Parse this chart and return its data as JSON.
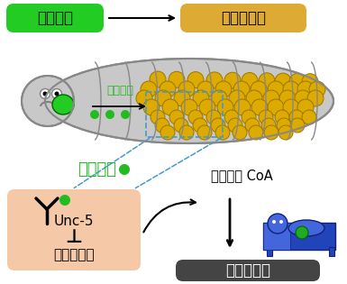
{
  "bg_color": "#ffffff",
  "label_cancer": "がん組織",
  "label_fat": "脂肪体組織",
  "label_netrin1": "ネトリン",
  "label_netrin2": "ネトリン",
  "label_unc5": "Unc-5",
  "label_inhibit": "⊥",
  "label_carnitine": "カルニチン",
  "label_acetyl": "アセチル CoA",
  "label_death": "個体の死亡",
  "cancer_box_color": "#22cc22",
  "fat_box_color": "#ddaa33",
  "death_box_color": "#444444",
  "unc_box_color": "#f5c8a8",
  "netrin_dot_color": "#22bb22",
  "netrin_text_color": "#22bb22",
  "larva_body_color": "#c8c8c8",
  "larva_outline": "#888888",
  "fat_cell_color": "#ddaa00",
  "fat_cell_outline": "#997700",
  "arrow_color": "#000000",
  "dashed_color": "#4499cc"
}
